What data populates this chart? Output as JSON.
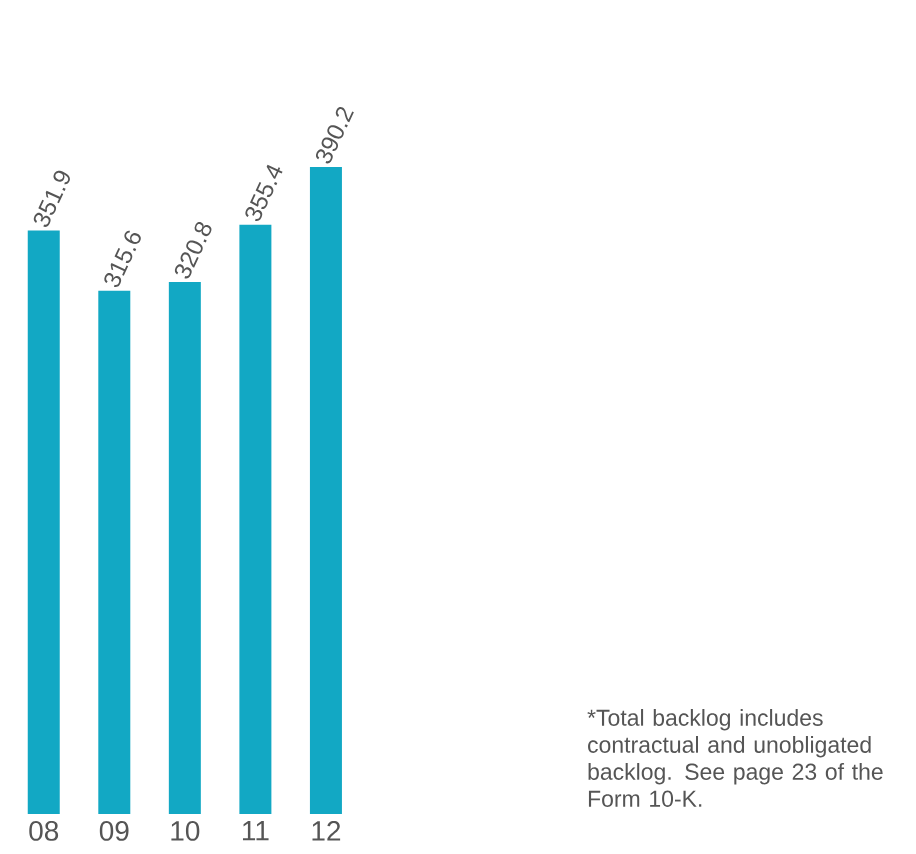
{
  "chart_data": {
    "type": "bar",
    "categories": [
      "08",
      "09",
      "10",
      "11",
      "12"
    ],
    "values": [
      351.9,
      315.6,
      320.8,
      355.4,
      390.2
    ],
    "color": "#12a8c4",
    "value_labels": [
      "351.9",
      "315.6",
      "320.8",
      "355.4",
      "390.2"
    ],
    "annotations": [
      "*Total backlog includes contractual and unobligated backlog. See page 23 of the Form 10-K."
    ]
  }
}
